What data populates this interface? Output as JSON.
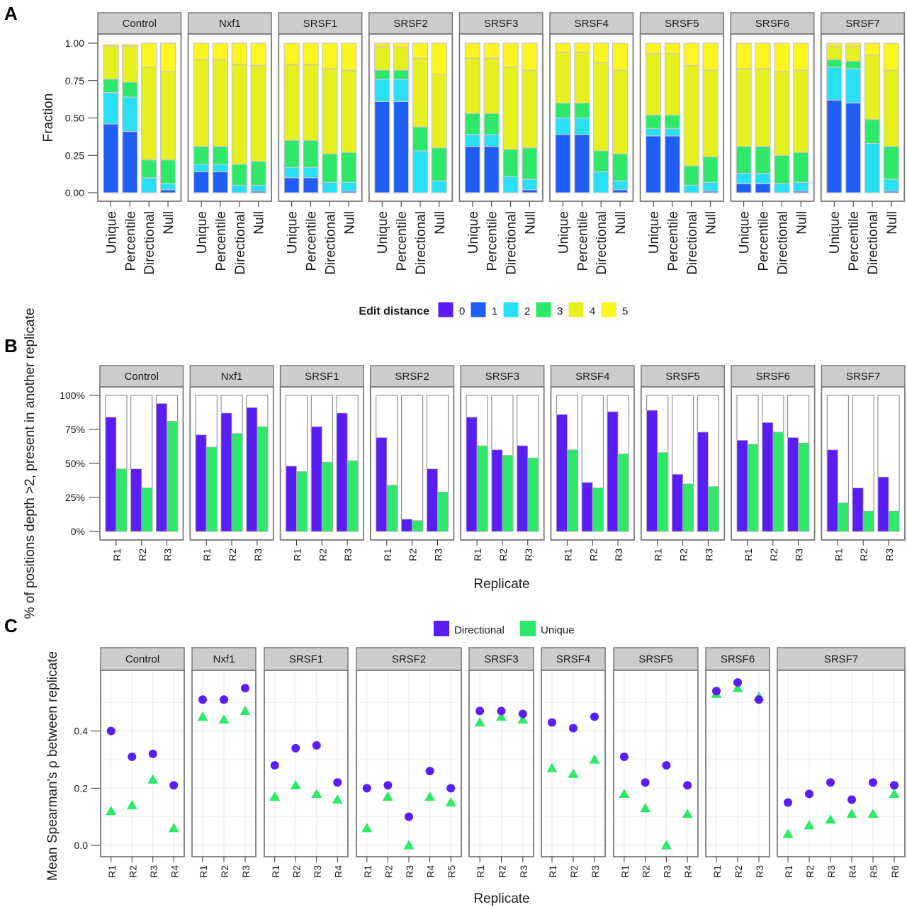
{
  "panel_labels": [
    "A",
    "B",
    "C"
  ],
  "colors": {
    "0": "#5a1ef5",
    "1": "#1e5ef5",
    "2": "#28e0f5",
    "3": "#2ee86a",
    "4": "#e6f01e",
    "5": "#fcf51e",
    "directional": "#5a1ef5",
    "unique": "#2ee86a",
    "strip_bg": "#cccccc",
    "panel_border": "#7a7a7a"
  },
  "chart_data": [
    {
      "type": "bar",
      "subtype": "stacked",
      "panel": "A",
      "facets": [
        "Control",
        "Nxf1",
        "SRSF1",
        "SRSF2",
        "SRSF3",
        "SRSF4",
        "SRSF5",
        "SRSF6",
        "SRSF7"
      ],
      "categories": [
        "Unique",
        "Percentile",
        "Directional",
        "Null"
      ],
      "ylabel": "Fraction",
      "ylim": [
        0,
        1
      ],
      "yticks": [
        "0.00",
        "0.25",
        "0.50",
        "0.75",
        "1.00"
      ],
      "legend": {
        "title": "Edit distance",
        "labels": [
          "0",
          "1",
          "2",
          "3",
          "4",
          "5"
        ],
        "position": "bottom"
      },
      "segment_order": [
        "0",
        "1",
        "2",
        "3",
        "4",
        "5"
      ],
      "values": {
        "Control": {
          "Unique": [
            0,
            0.46,
            0.21,
            0.09,
            0.22,
            0.01
          ],
          "Percentile": [
            0,
            0.41,
            0.23,
            0.1,
            0.24,
            0.01
          ],
          "Directional": [
            0,
            0,
            0.1,
            0.12,
            0.62,
            0.16
          ],
          "Null": [
            0,
            0.02,
            0.04,
            0.16,
            0.59,
            0.19
          ]
        },
        "Nxf1": {
          "Unique": [
            0,
            0.14,
            0.05,
            0.12,
            0.58,
            0.11
          ],
          "Percentile": [
            0,
            0.14,
            0.05,
            0.12,
            0.58,
            0.11
          ],
          "Directional": [
            0,
            0,
            0.05,
            0.14,
            0.67,
            0.14
          ],
          "Null": [
            0,
            0.01,
            0.04,
            0.16,
            0.64,
            0.15
          ]
        },
        "SRSF1": {
          "Unique": [
            0,
            0.1,
            0.07,
            0.18,
            0.51,
            0.14
          ],
          "Percentile": [
            0,
            0.1,
            0.07,
            0.18,
            0.51,
            0.14
          ],
          "Directional": [
            0,
            0,
            0.07,
            0.19,
            0.57,
            0.17
          ],
          "Null": [
            0,
            0.01,
            0.06,
            0.2,
            0.55,
            0.18
          ]
        },
        "SRSF2": {
          "Unique": [
            0,
            0.61,
            0.15,
            0.06,
            0.16,
            0.02
          ],
          "Percentile": [
            0,
            0.61,
            0.15,
            0.06,
            0.15,
            0.03
          ],
          "Directional": [
            0,
            0,
            0.28,
            0.16,
            0.46,
            0.1
          ],
          "Null": [
            0,
            0,
            0.08,
            0.22,
            0.49,
            0.21
          ]
        },
        "SRSF3": {
          "Unique": [
            0,
            0.31,
            0.08,
            0.14,
            0.37,
            0.1
          ],
          "Percentile": [
            0,
            0.31,
            0.08,
            0.14,
            0.37,
            0.1
          ],
          "Directional": [
            0,
            0,
            0.11,
            0.18,
            0.55,
            0.16
          ],
          "Null": [
            0,
            0.02,
            0.07,
            0.21,
            0.52,
            0.18
          ]
        },
        "SRSF4": {
          "Unique": [
            0,
            0.39,
            0.11,
            0.1,
            0.34,
            0.06
          ],
          "Percentile": [
            0,
            0.39,
            0.11,
            0.1,
            0.34,
            0.06
          ],
          "Directional": [
            0,
            0,
            0.14,
            0.14,
            0.59,
            0.13
          ],
          "Null": [
            0,
            0.02,
            0.06,
            0.18,
            0.56,
            0.18
          ]
        },
        "SRSF5": {
          "Unique": [
            0,
            0.38,
            0.05,
            0.09,
            0.41,
            0.07
          ],
          "Percentile": [
            0,
            0.38,
            0.05,
            0.09,
            0.41,
            0.07
          ],
          "Directional": [
            0,
            0,
            0.05,
            0.13,
            0.67,
            0.15
          ],
          "Null": [
            0,
            0.01,
            0.06,
            0.17,
            0.58,
            0.18
          ]
        },
        "SRSF6": {
          "Unique": [
            0,
            0.06,
            0.07,
            0.18,
            0.52,
            0.17
          ],
          "Percentile": [
            0,
            0.06,
            0.07,
            0.18,
            0.52,
            0.17
          ],
          "Directional": [
            0,
            0,
            0.06,
            0.19,
            0.56,
            0.19
          ],
          "Null": [
            0,
            0.01,
            0.06,
            0.2,
            0.55,
            0.18
          ]
        },
        "SRSF7": {
          "Unique": [
            0,
            0.62,
            0.22,
            0.05,
            0.09,
            0.02
          ],
          "Percentile": [
            0,
            0.6,
            0.23,
            0.05,
            0.1,
            0.02
          ],
          "Directional": [
            0,
            0,
            0.33,
            0.16,
            0.43,
            0.08
          ],
          "Null": [
            0,
            0.01,
            0.08,
            0.22,
            0.51,
            0.18
          ]
        }
      }
    },
    {
      "type": "bar",
      "subtype": "paired",
      "panel": "B",
      "facets": [
        "Control",
        "Nxf1",
        "SRSF1",
        "SRSF2",
        "SRSF3",
        "SRSF4",
        "SRSF5",
        "SRSF6",
        "SRSF7"
      ],
      "categories": [
        "R1",
        "R2",
        "R3"
      ],
      "xlabel": "Replicate",
      "ylabel": "% of positions depth >2, present in another replicate",
      "ylim": [
        0,
        100
      ],
      "yticks": [
        "0%",
        "25%",
        "50%",
        "75%",
        "100%"
      ],
      "series": [
        {
          "name": "Directional",
          "values": {
            "Control": [
              84,
              46,
              94
            ],
            "Nxf1": [
              71,
              87,
              91
            ],
            "SRSF1": [
              48,
              77,
              87
            ],
            "SRSF2": [
              69,
              9,
              46
            ],
            "SRSF3": [
              84,
              60,
              63
            ],
            "SRSF4": [
              86,
              36,
              88
            ],
            "SRSF5": [
              89,
              42,
              73
            ],
            "SRSF6": [
              67,
              80,
              69
            ],
            "SRSF7": [
              60,
              32,
              40
            ]
          }
        },
        {
          "name": "Unique",
          "values": {
            "Control": [
              46,
              32,
              81
            ],
            "Nxf1": [
              62,
              72,
              77
            ],
            "SRSF1": [
              44,
              51,
              52
            ],
            "SRSF2": [
              34,
              8,
              29
            ],
            "SRSF3": [
              63,
              56,
              54
            ],
            "SRSF4": [
              60,
              32,
              57
            ],
            "SRSF5": [
              58,
              35,
              33
            ],
            "SRSF6": [
              64,
              73,
              65
            ],
            "SRSF7": [
              21,
              15,
              15
            ]
          }
        }
      ]
    },
    {
      "type": "scatter",
      "panel": "C",
      "facets": [
        "Control",
        "Nxf1",
        "SRSF1",
        "SRSF2",
        "SRSF3",
        "SRSF4",
        "SRSF5",
        "SRSF6",
        "SRSF7"
      ],
      "xlabel": "Replicate",
      "ylabel": "Mean Spearman's ρ between replicate",
      "ylim": [
        -0.03,
        0.6
      ],
      "yticks": [
        "0.0",
        "0.2",
        "0.4"
      ],
      "legend": {
        "labels": [
          "Directional",
          "Unique"
        ],
        "position": "top"
      },
      "replicates": {
        "Control": [
          "R1",
          "R2",
          "R3",
          "R4"
        ],
        "Nxf1": [
          "R1",
          "R2",
          "R3"
        ],
        "SRSF1": [
          "R1",
          "R2",
          "R3",
          "R4"
        ],
        "SRSF2": [
          "R1",
          "R2",
          "R3",
          "R4",
          "R5"
        ],
        "SRSF3": [
          "R1",
          "R2",
          "R3"
        ],
        "SRSF4": [
          "R1",
          "R2",
          "R3"
        ],
        "SRSF5": [
          "R1",
          "R2",
          "R3",
          "R4"
        ],
        "SRSF6": [
          "R1",
          "R2",
          "R3"
        ],
        "SRSF7": [
          "R1",
          "R2",
          "R3",
          "R4",
          "R5",
          "R6"
        ]
      },
      "series": [
        {
          "name": "Directional",
          "marker": "circle",
          "values": {
            "Control": [
              0.4,
              0.31,
              0.32,
              0.21
            ],
            "Nxf1": [
              0.51,
              0.51,
              0.55
            ],
            "SRSF1": [
              0.28,
              0.34,
              0.35,
              0.22
            ],
            "SRSF2": [
              0.2,
              0.21,
              0.1,
              0.26,
              0.2
            ],
            "SRSF3": [
              0.47,
              0.47,
              0.46
            ],
            "SRSF4": [
              0.43,
              0.41,
              0.45
            ],
            "SRSF5": [
              0.31,
              0.22,
              0.28,
              0.21
            ],
            "SRSF6": [
              0.54,
              0.57,
              0.51
            ],
            "SRSF7": [
              0.15,
              0.18,
              0.22,
              0.16,
              0.22,
              0.21
            ]
          }
        },
        {
          "name": "Unique",
          "marker": "triangle",
          "values": {
            "Control": [
              0.12,
              0.14,
              0.23,
              0.06
            ],
            "Nxf1": [
              0.45,
              0.44,
              0.47
            ],
            "SRSF1": [
              0.17,
              0.21,
              0.18,
              0.16
            ],
            "SRSF2": [
              0.06,
              0.17,
              0.0,
              0.17,
              0.15
            ],
            "SRSF3": [
              0.43,
              0.45,
              0.44
            ],
            "SRSF4": [
              0.27,
              0.25,
              0.3
            ],
            "SRSF5": [
              0.18,
              0.13,
              0.0,
              0.11
            ],
            "SRSF6": [
              0.53,
              0.55,
              0.52
            ],
            "SRSF7": [
              0.04,
              0.07,
              0.09,
              0.11,
              0.11,
              0.18
            ]
          }
        }
      ]
    }
  ]
}
